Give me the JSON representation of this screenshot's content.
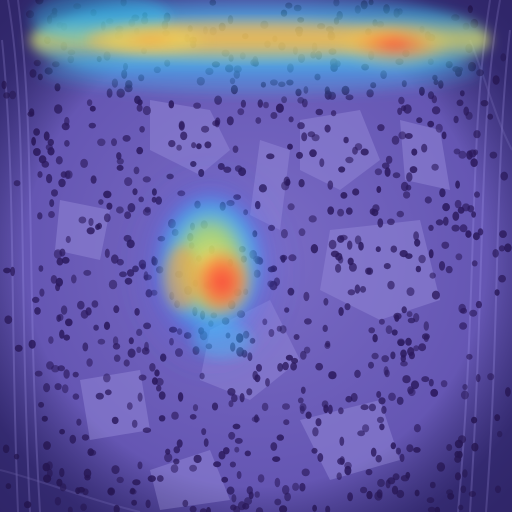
{
  "image": {
    "subject": "histology-tissue-section",
    "stain": "hematoxylin-eosin",
    "overlay": "attention-heatmap",
    "colors": {
      "tissue_base": "#6a5bb8",
      "tissue_light": "#8a7fd0",
      "nucleus": "#2c1a5e",
      "stroma_fiber": "#7d70c9",
      "edge_dark": "#3b2f80",
      "heat_low": "#4a6cff",
      "heat_mid_cyan": "#37d3ff",
      "heat_mid_yellow": "#f3e85a",
      "heat_high_orange": "#ff9a3c",
      "heat_peak": "#ff3b3b"
    },
    "hotspots": [
      {
        "name": "top-band",
        "intensity": 0.85
      },
      {
        "name": "center-focus",
        "intensity": 1.0
      }
    ]
  }
}
